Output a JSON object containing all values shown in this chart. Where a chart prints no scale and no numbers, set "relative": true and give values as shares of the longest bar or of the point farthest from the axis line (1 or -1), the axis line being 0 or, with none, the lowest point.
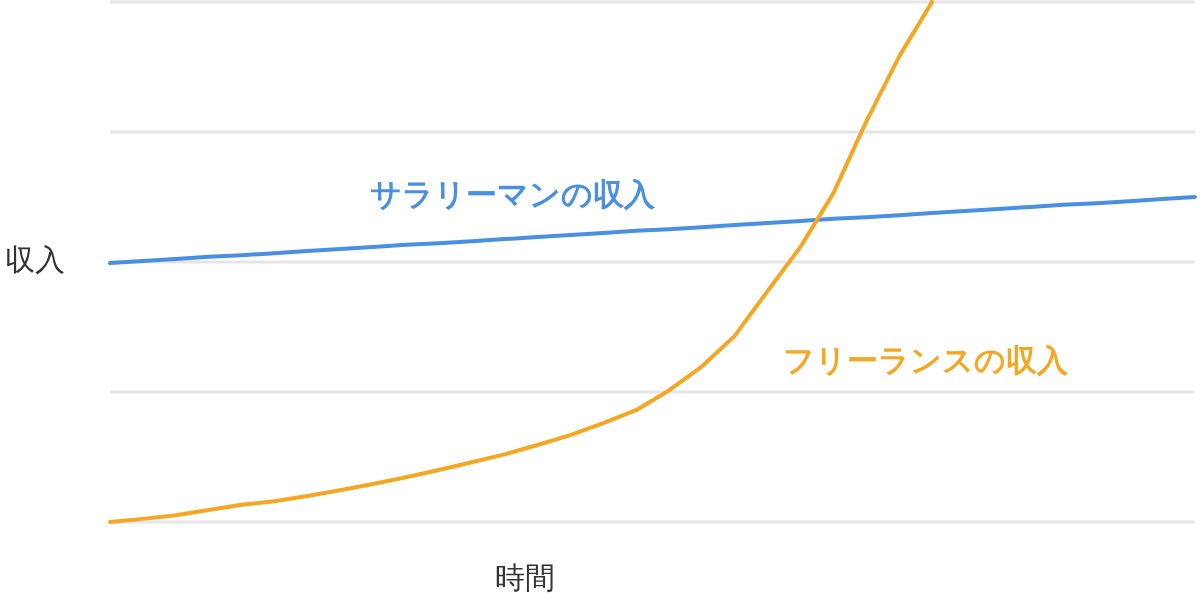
{
  "chart_data": {
    "type": "line",
    "relative": true,
    "xlabel": "時間",
    "ylabel": "収入",
    "grid": "y",
    "legend": false,
    "marker": "none",
    "line_style": "solid",
    "categories": [
      null,
      null,
      null,
      null,
      null,
      null,
      null,
      null,
      null,
      null,
      null,
      null,
      null,
      null,
      null,
      null,
      null,
      null,
      null,
      null,
      null,
      null,
      null,
      null,
      null,
      null,
      null,
      null,
      null,
      null,
      null,
      null,
      null,
      null
    ],
    "series": [
      {
        "name": "サラリーマンの収入",
        "color": "#4a90e2",
        "values": [
          0.498,
          0.502,
          0.506,
          0.51,
          0.513,
          0.517,
          0.521,
          0.525,
          0.529,
          0.533,
          0.536,
          0.54,
          0.544,
          0.548,
          0.552,
          0.556,
          0.56,
          0.563,
          0.567,
          0.571,
          0.575,
          0.579,
          0.583,
          0.586,
          0.59,
          0.594,
          0.598,
          0.602,
          0.606,
          0.61,
          0.613,
          0.617,
          0.621,
          0.625
        ]
      },
      {
        "name": "フリーランスの収入",
        "color": "#f5a623",
        "values": [
          0,
          0.006,
          0.013,
          0.023,
          0.033,
          0.04,
          0.05,
          0.061,
          0.073,
          0.086,
          0.1,
          0.115,
          0.13,
          0.148,
          0.167,
          0.19,
          0.215,
          0.253,
          0.299,
          0.358,
          0.444,
          0.529,
          0.632,
          0.77,
          0.895,
          1,
          null,
          null,
          null,
          null,
          null,
          null,
          null,
          null
        ]
      }
    ]
  }
}
